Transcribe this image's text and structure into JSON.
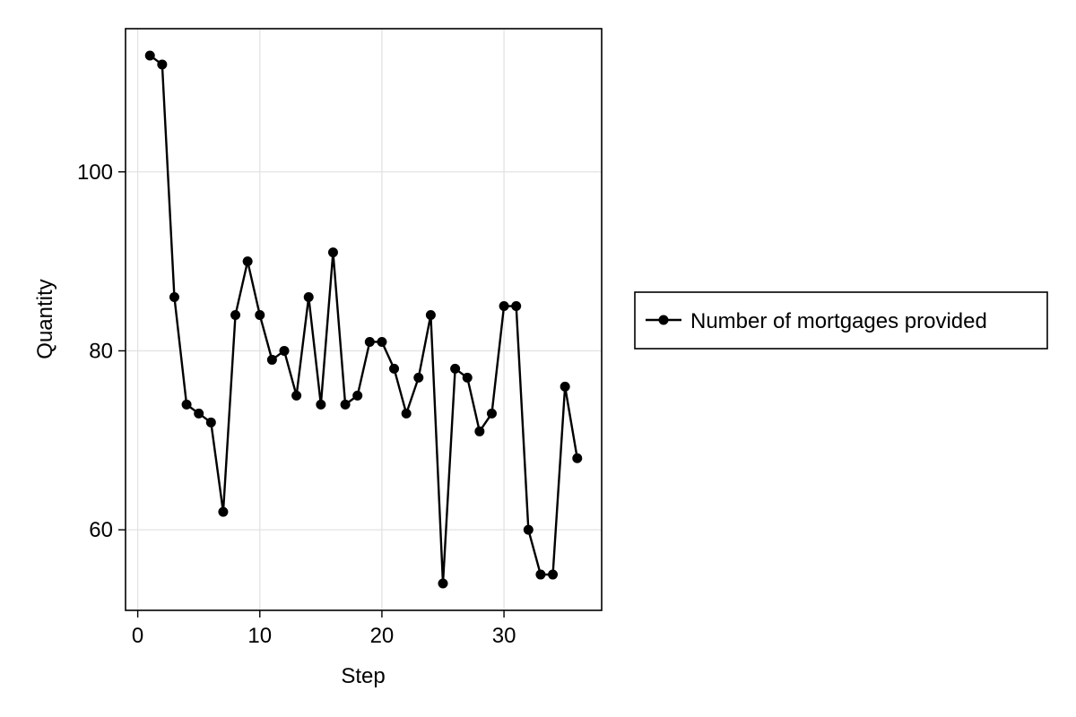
{
  "chart_data": {
    "type": "line",
    "title": "",
    "xlabel": "Step",
    "ylabel": "Quantity",
    "xlim": [
      -1,
      38
    ],
    "ylim": [
      51,
      116
    ],
    "xticks": [
      0,
      10,
      20,
      30
    ],
    "yticks": [
      60,
      80,
      100
    ],
    "xtick_labels": [
      "0",
      "10",
      "20",
      "30"
    ],
    "ytick_labels": [
      "60",
      "80",
      "100"
    ],
    "grid": true,
    "legend_position": "right",
    "series": [
      {
        "name": "Number of mortgages provided",
        "color": "#000000",
        "marker": "circle",
        "x": [
          1,
          2,
          3,
          4,
          5,
          6,
          7,
          8,
          9,
          10,
          11,
          12,
          13,
          14,
          15,
          16,
          17,
          18,
          19,
          20,
          21,
          22,
          23,
          24,
          25,
          26,
          27,
          28,
          29,
          30,
          31,
          32,
          33,
          34,
          35,
          36
        ],
        "y": [
          113,
          112,
          86,
          74,
          73,
          72,
          62,
          84,
          90,
          84,
          79,
          80,
          75,
          86,
          74,
          91,
          74,
          75,
          81,
          81,
          78,
          73,
          77,
          84,
          54,
          78,
          77,
          71,
          73,
          85,
          85,
          60,
          55,
          55,
          76,
          68
        ]
      }
    ]
  }
}
